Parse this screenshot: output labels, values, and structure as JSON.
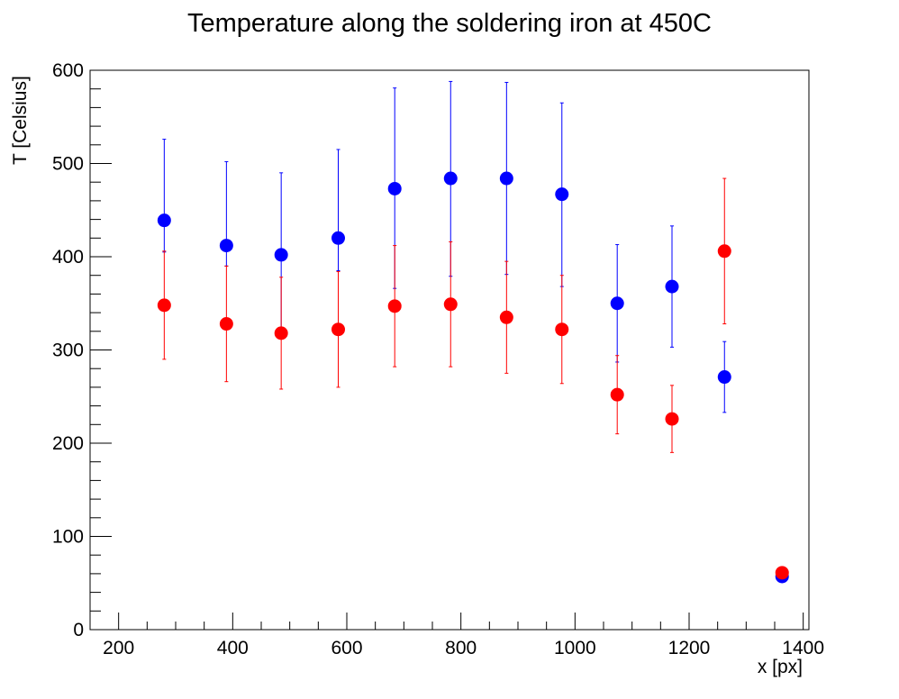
{
  "chart_data": {
    "type": "scatter",
    "title": "Temperature along the soldering iron at 450C",
    "xlabel": "x [px]",
    "ylabel": "T [Celsius]",
    "xlim": [
      150,
      1410
    ],
    "ylim": [
      0,
      600
    ],
    "x_major_ticks": [
      200,
      400,
      600,
      800,
      1000,
      1200,
      1400
    ],
    "x_tick_labels": [
      "200",
      "400",
      "600",
      "800",
      "1000",
      "1200",
      "1400"
    ],
    "y_major_ticks": [
      0,
      100,
      200,
      300,
      400,
      500,
      600
    ],
    "y_tick_labels": [
      "0",
      "100",
      "200",
      "300",
      "400",
      "500",
      "600"
    ],
    "grid": false,
    "legend": "none",
    "series": [
      {
        "color": "#0000ff",
        "points": [
          {
            "x": 280,
            "y": 439,
            "err_low": 34,
            "err_high": 87
          },
          {
            "x": 389,
            "y": 412,
            "err_low": 22,
            "err_high": 90
          },
          {
            "x": 485,
            "y": 402,
            "err_low": 87,
            "err_high": 88
          },
          {
            "x": 585,
            "y": 420,
            "err_low": 35,
            "err_high": 95
          },
          {
            "x": 684,
            "y": 473,
            "err_low": 107,
            "err_high": 108
          },
          {
            "x": 782,
            "y": 484,
            "err_low": 105,
            "err_high": 104
          },
          {
            "x": 880,
            "y": 484,
            "err_low": 103,
            "err_high": 103
          },
          {
            "x": 977,
            "y": 467,
            "err_low": 99,
            "err_high": 98
          },
          {
            "x": 1074,
            "y": 350,
            "err_low": 63,
            "err_high": 63
          },
          {
            "x": 1170,
            "y": 368,
            "err_low": 65,
            "err_high": 65
          },
          {
            "x": 1262,
            "y": 271,
            "err_low": 38,
            "err_high": 38
          },
          {
            "x": 1363,
            "y": 57,
            "err_low": 0,
            "err_high": 0
          }
        ]
      },
      {
        "color": "#ff0000",
        "points": [
          {
            "x": 280,
            "y": 348,
            "err_low": 58,
            "err_high": 58
          },
          {
            "x": 389,
            "y": 328,
            "err_low": 62,
            "err_high": 62
          },
          {
            "x": 485,
            "y": 318,
            "err_low": 60,
            "err_high": 60
          },
          {
            "x": 585,
            "y": 322,
            "err_low": 62,
            "err_high": 62
          },
          {
            "x": 684,
            "y": 347,
            "err_low": 65,
            "err_high": 65
          },
          {
            "x": 782,
            "y": 349,
            "err_low": 67,
            "err_high": 67
          },
          {
            "x": 880,
            "y": 335,
            "err_low": 60,
            "err_high": 60
          },
          {
            "x": 977,
            "y": 322,
            "err_low": 58,
            "err_high": 58
          },
          {
            "x": 1074,
            "y": 252,
            "err_low": 42,
            "err_high": 42
          },
          {
            "x": 1170,
            "y": 226,
            "err_low": 36,
            "err_high": 36
          },
          {
            "x": 1262,
            "y": 406,
            "err_low": 78,
            "err_high": 78
          },
          {
            "x": 1363,
            "y": 61,
            "err_low": 0,
            "err_high": 0
          }
        ]
      }
    ]
  }
}
